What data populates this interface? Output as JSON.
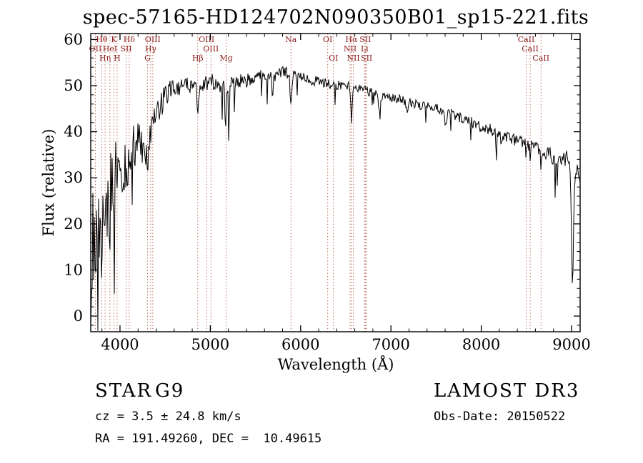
{
  "chart_data": {
    "type": "line",
    "title": "spec-57165-HD124702N090350B01_sp15-221.fits",
    "xlabel": "Wavelength (Å)",
    "ylabel": "Flux (relative)",
    "xlim": [
      3676,
      9095
    ],
    "ylim": [
      -3.4,
      61.3
    ],
    "x_ticks": [
      4000,
      5000,
      6000,
      7000,
      8000,
      9000
    ],
    "y_ticks": [
      0,
      10,
      20,
      30,
      40,
      50,
      60
    ],
    "x_minor_step": 200,
    "y_minor_step": 2,
    "grid": false,
    "trace_color": "#000000",
    "line_marker_color": "#b05a45",
    "line_label_color": "#8b1a1a",
    "spectral_lines": [
      {
        "wavelength": 3727,
        "label": "OII",
        "row": 2
      },
      {
        "wavelength": 3798,
        "label": "Hθ",
        "row": 1
      },
      {
        "wavelength": 3835,
        "label": "Hη",
        "row": 3
      },
      {
        "wavelength": 3889,
        "label": "HeI",
        "row": 2
      },
      {
        "wavelength": 3933,
        "label": "K",
        "row": 1
      },
      {
        "wavelength": 3968,
        "label": "H",
        "row": 3
      },
      {
        "wavelength": 4068,
        "label": "SII",
        "row": 2
      },
      {
        "wavelength": 4102,
        "label": "Hδ",
        "row": 1
      },
      {
        "wavelength": 4305,
        "label": "G",
        "row": 3
      },
      {
        "wavelength": 4340,
        "label": "Hγ",
        "row": 2
      },
      {
        "wavelength": 4363,
        "label": "OIII",
        "row": 1
      },
      {
        "wavelength": 4861,
        "label": "Hβ",
        "row": 3
      },
      {
        "wavelength": 4959,
        "label": "OIII",
        "row": 1
      },
      {
        "wavelength": 5007,
        "label": "OIII",
        "row": 2
      },
      {
        "wavelength": 5175,
        "label": "Mg",
        "row": 3
      },
      {
        "wavelength": 5893,
        "label": "Na",
        "row": 1
      },
      {
        "wavelength": 6300,
        "label": "OI",
        "row": 1
      },
      {
        "wavelength": 6364,
        "label": "OI",
        "row": 3
      },
      {
        "wavelength": 6548,
        "label": "NII",
        "row": 2
      },
      {
        "wavelength": 6563,
        "label": "Hα",
        "row": 1
      },
      {
        "wavelength": 6584,
        "label": "NII",
        "row": 3
      },
      {
        "wavelength": 6708,
        "label": "Li",
        "row": 2
      },
      {
        "wavelength": 6717,
        "label": "SII",
        "row": 1
      },
      {
        "wavelength": 6731,
        "label": "SII",
        "row": 3
      },
      {
        "wavelength": 8498,
        "label": "CaII",
        "row": 1
      },
      {
        "wavelength": 8542,
        "label": "CaII",
        "row": 2
      },
      {
        "wavelength": 8662,
        "label": "CaII",
        "row": 3
      }
    ],
    "spectrum": {
      "continuum_anchors": [
        [
          3676,
          5
        ],
        [
          3700,
          15
        ],
        [
          3730,
          20
        ],
        [
          3760,
          18
        ],
        [
          3800,
          22
        ],
        [
          3850,
          18
        ],
        [
          3900,
          26
        ],
        [
          3950,
          30
        ],
        [
          4000,
          33
        ],
        [
          4050,
          31
        ],
        [
          4100,
          35
        ],
        [
          4150,
          37
        ],
        [
          4200,
          38
        ],
        [
          4250,
          36
        ],
        [
          4300,
          34
        ],
        [
          4350,
          40
        ],
        [
          4400,
          44
        ],
        [
          4450,
          46
        ],
        [
          4500,
          48
        ],
        [
          4600,
          50
        ],
        [
          4700,
          50
        ],
        [
          4800,
          50
        ],
        [
          4900,
          50
        ],
        [
          5000,
          51
        ],
        [
          5100,
          50
        ],
        [
          5200,
          50
        ],
        [
          5300,
          51
        ],
        [
          5400,
          51
        ],
        [
          5500,
          52
        ],
        [
          5600,
          52
        ],
        [
          5700,
          52
        ],
        [
          5800,
          53
        ],
        [
          5900,
          52.5
        ],
        [
          6000,
          52
        ],
        [
          6100,
          51
        ],
        [
          6200,
          51
        ],
        [
          6300,
          50.5
        ],
        [
          6400,
          50
        ],
        [
          6500,
          50
        ],
        [
          6600,
          49.5
        ],
        [
          6700,
          49
        ],
        [
          6800,
          48.5
        ],
        [
          6900,
          48
        ],
        [
          7000,
          47.5
        ],
        [
          7100,
          47
        ],
        [
          7200,
          46.5
        ],
        [
          7300,
          46
        ],
        [
          7400,
          45.5
        ],
        [
          7500,
          45
        ],
        [
          7600,
          44.5
        ],
        [
          7700,
          43.5
        ],
        [
          7800,
          43
        ],
        [
          7900,
          42
        ],
        [
          8000,
          41
        ],
        [
          8100,
          40.5
        ],
        [
          8200,
          39.5
        ],
        [
          8300,
          39
        ],
        [
          8400,
          38
        ],
        [
          8500,
          37.5
        ],
        [
          8600,
          36.5
        ],
        [
          8700,
          35.5
        ],
        [
          8800,
          34.5
        ],
        [
          8900,
          34
        ],
        [
          9000,
          34
        ],
        [
          9040,
          32
        ],
        [
          9095,
          30
        ]
      ],
      "noise_amplitude": [
        [
          3676,
          15
        ],
        [
          3780,
          14
        ],
        [
          3860,
          11
        ],
        [
          3950,
          8
        ],
        [
          4050,
          6
        ],
        [
          4200,
          4.5
        ],
        [
          4400,
          3.5
        ],
        [
          4600,
          2.2
        ],
        [
          4900,
          1.8
        ],
        [
          5300,
          1.5
        ],
        [
          5900,
          1.2
        ],
        [
          6500,
          1.0
        ],
        [
          7000,
          1.0
        ],
        [
          7500,
          1.1
        ],
        [
          8000,
          1.2
        ],
        [
          8600,
          1.4
        ],
        [
          9000,
          2.0
        ],
        [
          9095,
          3.0
        ]
      ],
      "absorption_dips": [
        [
          4861,
          5,
          10
        ],
        [
          5168,
          9,
          5
        ],
        [
          5205,
          14,
          5
        ],
        [
          5893,
          7,
          8
        ],
        [
          6563,
          7,
          7
        ],
        [
          6870,
          2.5,
          12
        ],
        [
          7185,
          2,
          12
        ],
        [
          7605,
          3,
          15
        ],
        [
          8227,
          2,
          8
        ],
        [
          8498,
          2.5,
          5
        ],
        [
          8542,
          3,
          5
        ],
        [
          8662,
          3,
          5
        ],
        [
          9010,
          26,
          12
        ]
      ]
    }
  },
  "footer": {
    "left": {
      "class": "STAR",
      "subclass": "G9",
      "cz": "cz = 3.5 ± 24.8 km/s",
      "radec": "RA = 191.49260, DEC =  10.49615"
    },
    "right": {
      "survey": "LAMOST DR3",
      "obs_date": "Obs-Date: 20150522"
    }
  }
}
